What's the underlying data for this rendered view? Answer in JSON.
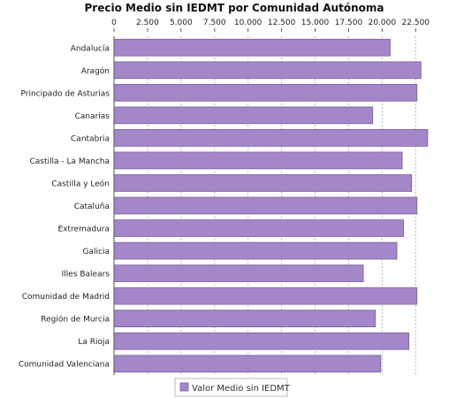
{
  "chart_data": {
    "type": "bar",
    "orientation": "horizontal",
    "title": "Precio Medio sin IEDMT por Comunidad Autónoma",
    "xlabel": "",
    "ylabel": "",
    "xlim": [
      0,
      25250
    ],
    "x_ticks": [
      0,
      2500,
      5000,
      7500,
      10000,
      12500,
      15000,
      17500,
      20000,
      22500
    ],
    "x_tick_labels": [
      "0",
      "2.500",
      "5.000",
      "7.500",
      "10.000",
      "12.500",
      "15.000",
      "17.500",
      "20.000",
      "22.500"
    ],
    "x_axis_position": "top",
    "grid": true,
    "legend_position": "bottom",
    "categories": [
      "Andalucía",
      "Aragón",
      "Principado de Asturias",
      "Canarias",
      "Cantabria",
      "Castilla - La Mancha",
      "Castilla y León",
      "Cataluña",
      "Extremadura",
      "Galicia",
      "Illes Balears",
      "Comunidad de Madrid",
      "Región de Murcia",
      "La Rioja",
      "Comunidad Valenciana"
    ],
    "series": [
      {
        "name": "Valor Medio sin IEDMT",
        "color": "#a487c8",
        "values": [
          20600,
          22900,
          22600,
          19300,
          23400,
          21500,
          22200,
          22600,
          21600,
          21100,
          18600,
          22600,
          19500,
          22000,
          19900
        ]
      }
    ]
  }
}
